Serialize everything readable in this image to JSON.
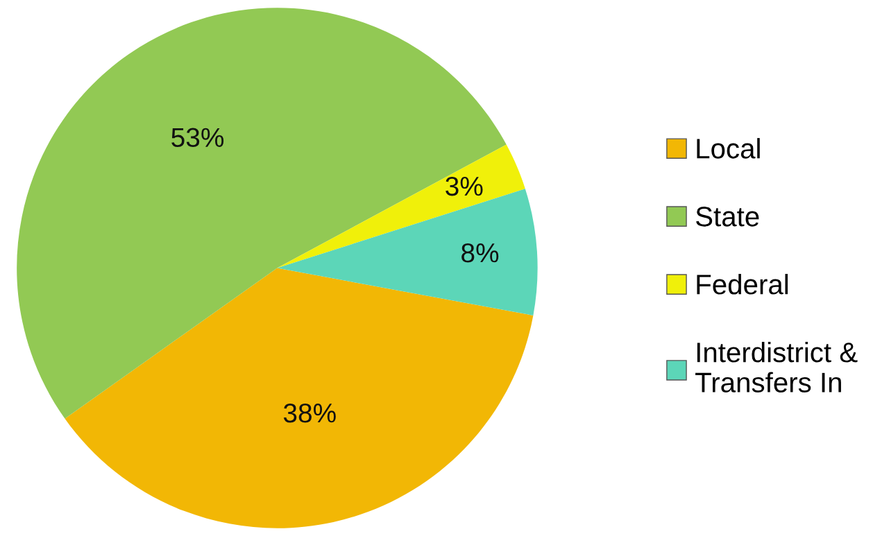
{
  "chart_data": {
    "type": "pie",
    "categories": [
      "Local",
      "State",
      "Federal",
      "Interdistrict &\nTransfers In"
    ],
    "values": [
      38,
      53,
      3,
      8
    ],
    "colors": [
      "#f2b705",
      "#92c954",
      "#f0f00a",
      "#5cd6b8"
    ],
    "value_labels": [
      "38%",
      "53%",
      "3%",
      "8%"
    ],
    "legend": "right"
  }
}
